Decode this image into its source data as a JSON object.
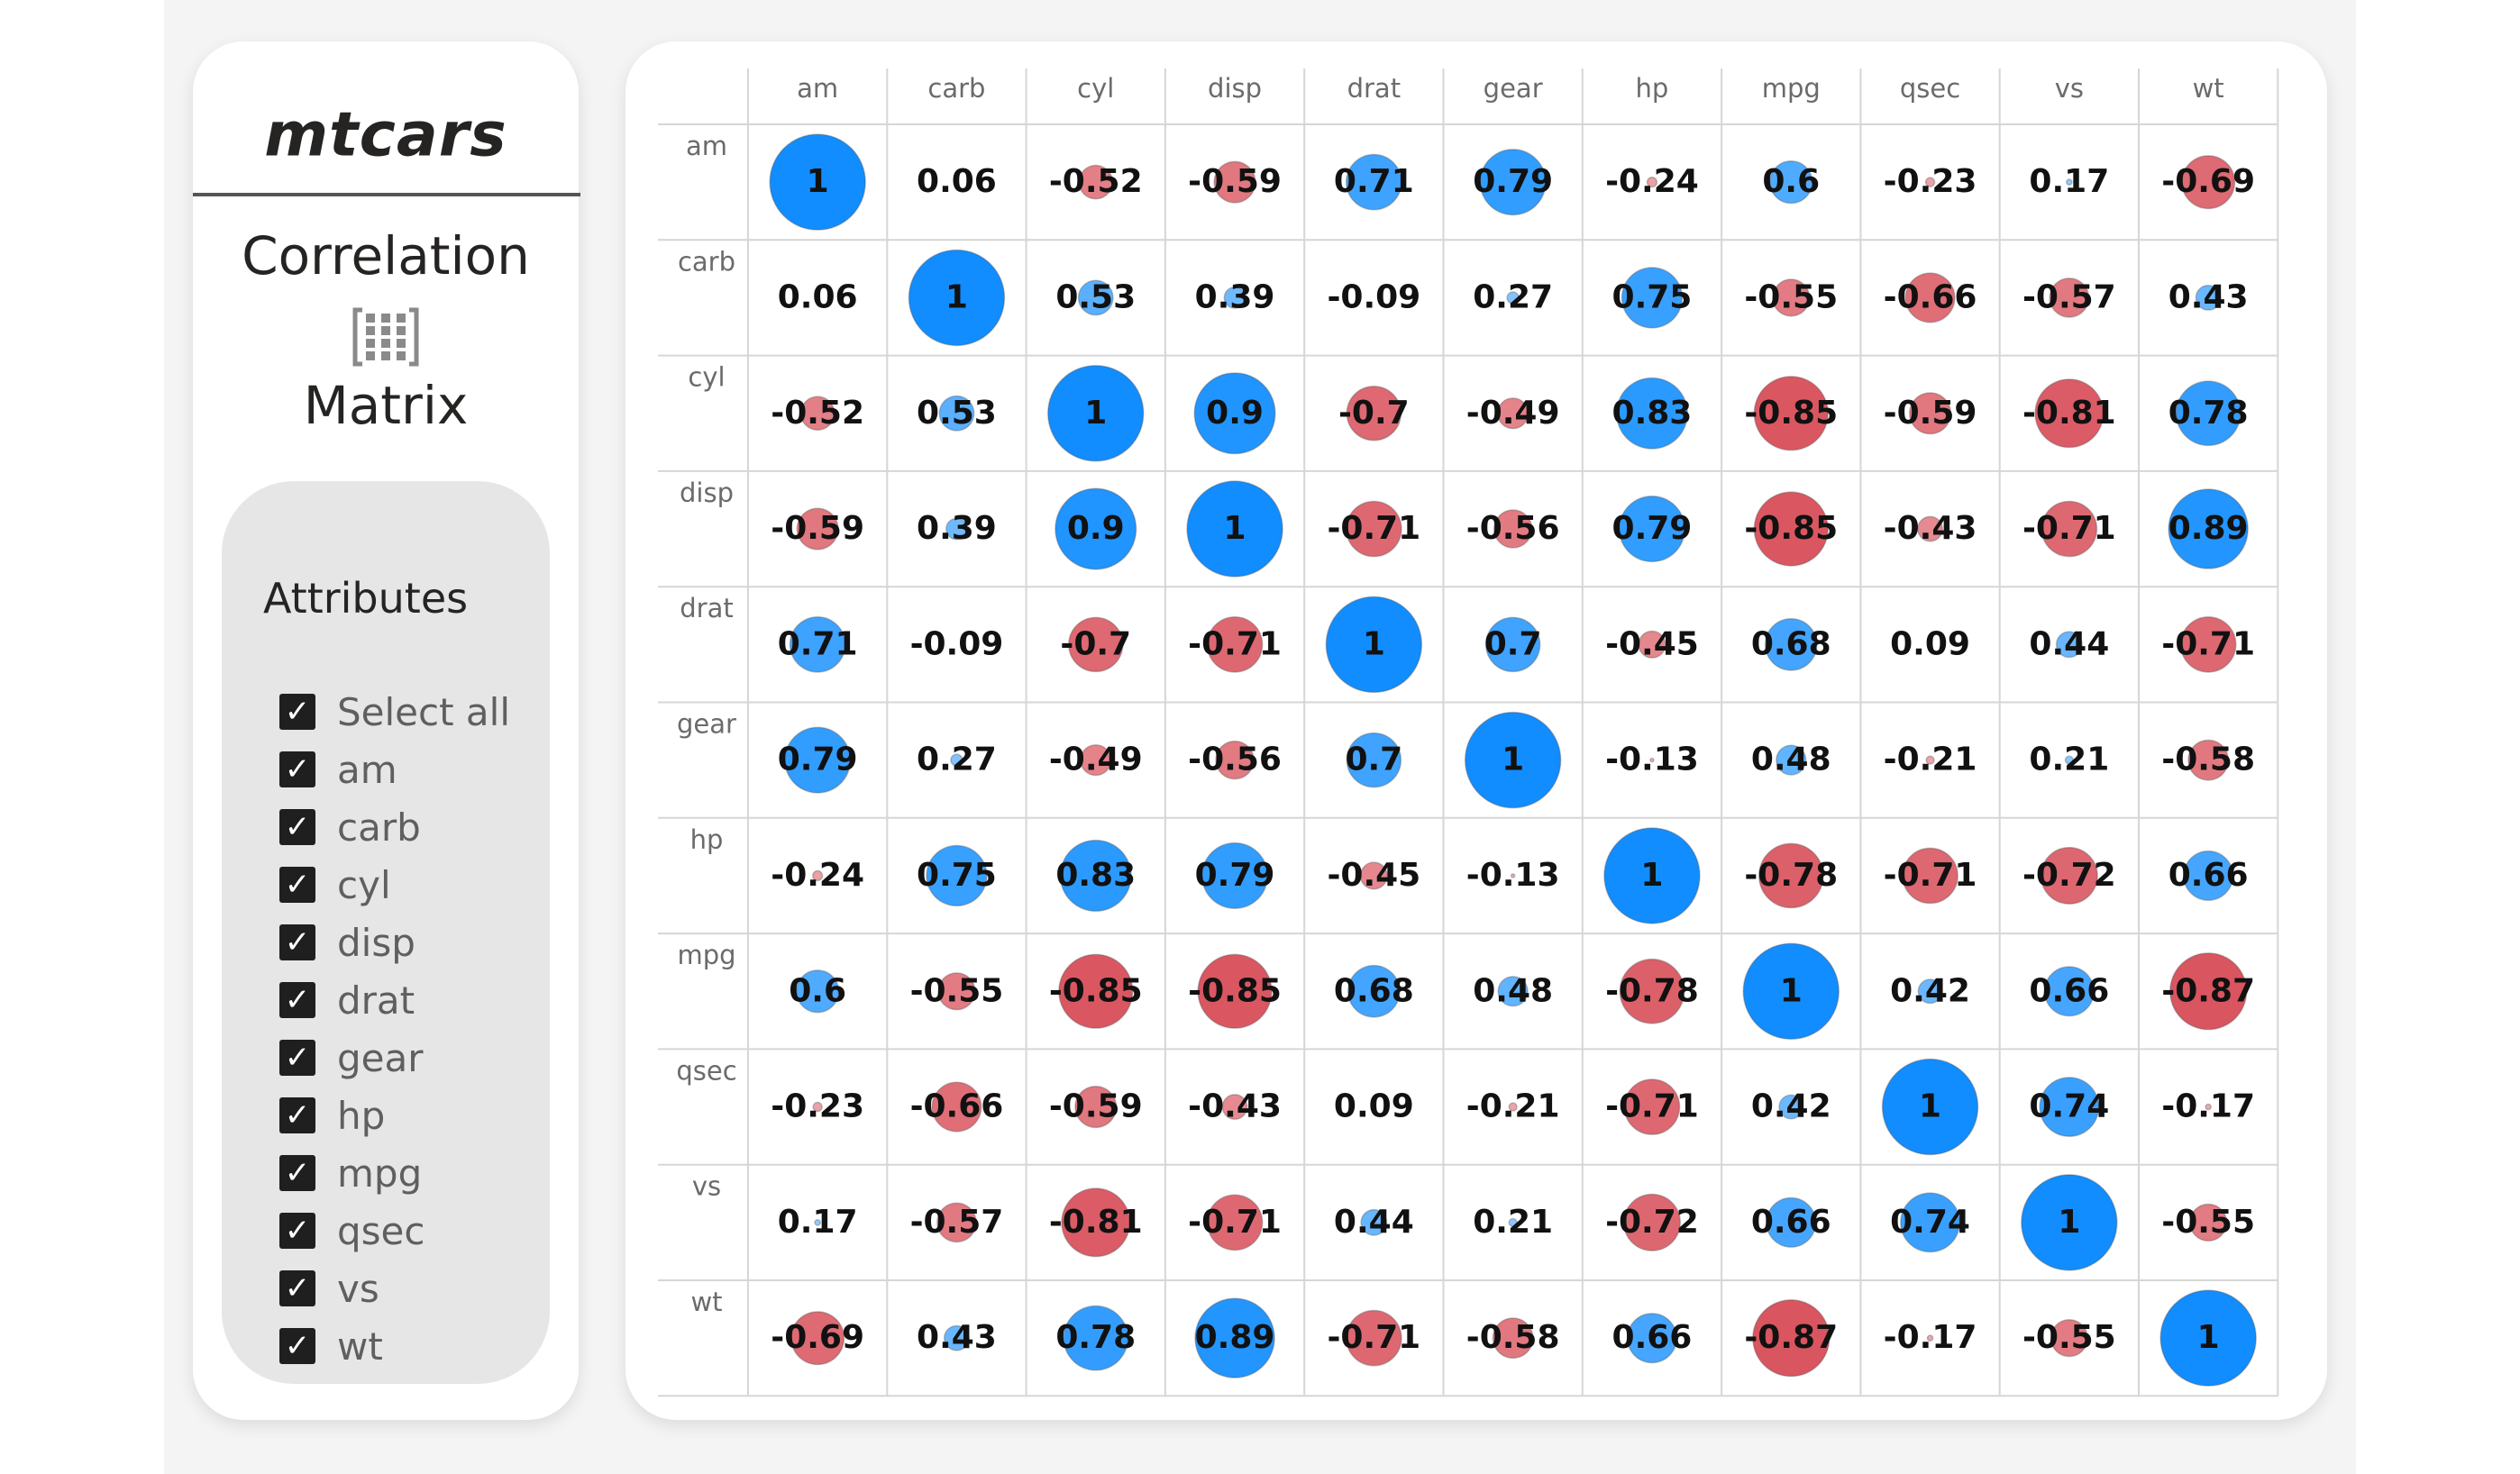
{
  "sidebar": {
    "app_title": "mtcars",
    "subtitle_line1": "Correlation",
    "subtitle_line2": "Matrix",
    "icon": "matrix-grid-icon",
    "attributes_heading": "Attributes",
    "select_all_label": "Select all",
    "attributes": [
      {
        "label": "am",
        "checked": true
      },
      {
        "label": "carb",
        "checked": true
      },
      {
        "label": "cyl",
        "checked": true
      },
      {
        "label": "disp",
        "checked": true
      },
      {
        "label": "drat",
        "checked": true
      },
      {
        "label": "gear",
        "checked": true
      },
      {
        "label": "hp",
        "checked": true
      },
      {
        "label": "mpg",
        "checked": true
      },
      {
        "label": "qsec",
        "checked": true
      },
      {
        "label": "vs",
        "checked": true
      },
      {
        "label": "wt",
        "checked": true
      }
    ]
  },
  "chart_data": {
    "type": "heatmap",
    "title": "",
    "columns": [
      "am",
      "carb",
      "cyl",
      "disp",
      "drat",
      "gear",
      "hp",
      "mpg",
      "qsec",
      "vs",
      "wt"
    ],
    "rows": [
      "am",
      "carb",
      "cyl",
      "disp",
      "drat",
      "gear",
      "hp",
      "mpg",
      "qsec",
      "vs",
      "wt"
    ],
    "values": [
      [
        1,
        0.06,
        -0.52,
        -0.59,
        0.71,
        0.79,
        -0.24,
        0.6,
        -0.23,
        0.17,
        -0.69
      ],
      [
        0.06,
        1,
        0.53,
        0.39,
        -0.09,
        0.27,
        0.75,
        -0.55,
        -0.66,
        -0.57,
        0.43
      ],
      [
        -0.52,
        0.53,
        1,
        0.9,
        -0.7,
        -0.49,
        0.83,
        -0.85,
        -0.59,
        -0.81,
        0.78
      ],
      [
        -0.59,
        0.39,
        0.9,
        1,
        -0.71,
        -0.56,
        0.79,
        -0.85,
        -0.43,
        -0.71,
        0.89
      ],
      [
        0.71,
        -0.09,
        -0.7,
        -0.71,
        1,
        0.7,
        -0.45,
        0.68,
        0.09,
        0.44,
        -0.71
      ],
      [
        0.79,
        0.27,
        -0.49,
        -0.56,
        0.7,
        1,
        -0.13,
        0.48,
        -0.21,
        0.21,
        -0.58
      ],
      [
        -0.24,
        0.75,
        0.83,
        0.79,
        -0.45,
        -0.13,
        1,
        -0.78,
        -0.71,
        -0.72,
        0.66
      ],
      [
        0.6,
        -0.55,
        -0.85,
        -0.85,
        0.68,
        0.48,
        -0.78,
        1,
        0.42,
        0.66,
        -0.87
      ],
      [
        -0.23,
        -0.66,
        -0.59,
        -0.43,
        0.09,
        -0.21,
        -0.71,
        0.42,
        1,
        0.74,
        -0.17
      ],
      [
        0.17,
        -0.57,
        -0.81,
        -0.71,
        0.44,
        0.21,
        -0.72,
        0.66,
        0.74,
        1,
        -0.55
      ],
      [
        -0.69,
        0.43,
        0.78,
        0.89,
        -0.71,
        -0.58,
        0.66,
        -0.87,
        -0.17,
        -0.55,
        1
      ]
    ],
    "marker": "circle-size-and-color-by-value",
    "positive_color": "#118dff",
    "negative_color": "#d64550",
    "grid": true
  }
}
